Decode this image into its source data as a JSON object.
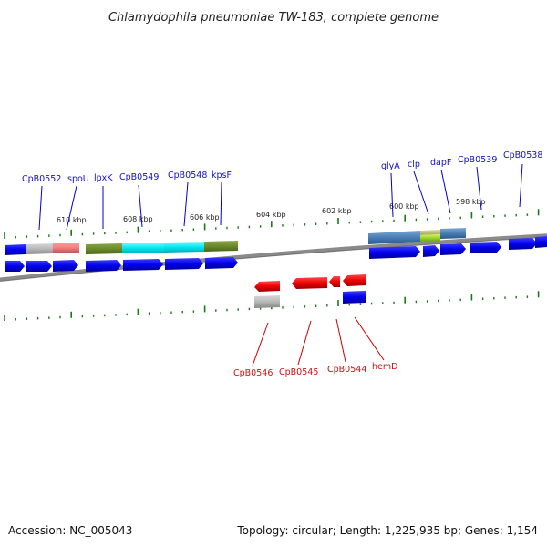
{
  "title": "Chlamydophila pneumoniae TW-183, complete genome",
  "footer": {
    "accession": "Accession: NC_005043",
    "summary": "Topology: circular; Length: 1,225,935 bp; Genes: 1,154"
  },
  "colors": {
    "forward": "#0000ee",
    "reverse": "#ee0000",
    "backbone": "#7a7a7a",
    "tick": "#1a7a1a",
    "label_forward": "#1010cc",
    "label_reverse": "#cc1010"
  },
  "ticks": [
    {
      "kbp": 610,
      "label": "610 kbp"
    },
    {
      "kbp": 608,
      "label": "608 kbp"
    },
    {
      "kbp": 606,
      "label": "606 kbp"
    },
    {
      "kbp": 604,
      "label": "604 kbp"
    },
    {
      "kbp": 602,
      "label": "602 kbp"
    },
    {
      "kbp": 600,
      "label": "600 kbp"
    },
    {
      "kbp": 598,
      "label": "598 kbp"
    }
  ],
  "forward_labels": [
    {
      "name": "CpB0552"
    },
    {
      "name": "spoU"
    },
    {
      "name": "lpxK"
    },
    {
      "name": "CpB0549"
    },
    {
      "name": "CpB0548"
    },
    {
      "name": "kpsF"
    },
    {
      "name": "glyA"
    },
    {
      "name": "clp"
    },
    {
      "name": "dapF"
    },
    {
      "name": "CpB0539"
    },
    {
      "name": "CpB0538"
    }
  ],
  "reverse_labels": [
    {
      "name": "CpB0546"
    },
    {
      "name": "CpB0545"
    },
    {
      "name": "CpB0544"
    },
    {
      "name": "hemD"
    }
  ]
}
